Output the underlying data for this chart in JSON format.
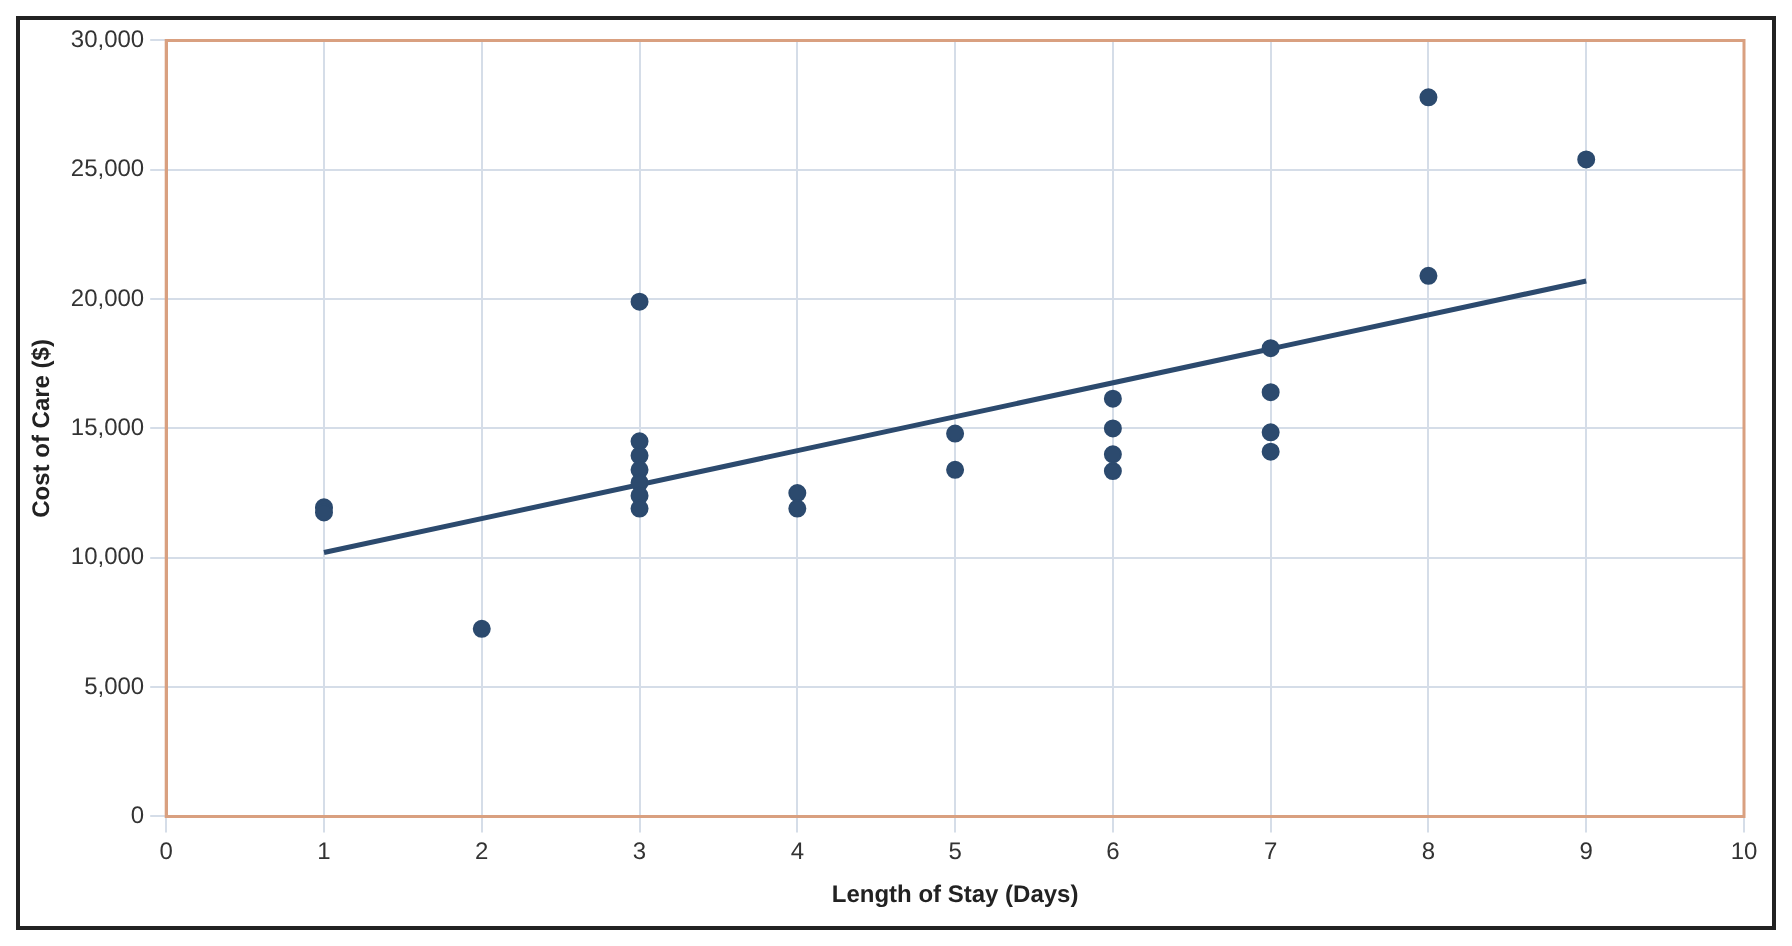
{
  "chart_data": {
    "type": "scatter",
    "xlabel": "Length of Stay (Days)",
    "ylabel": "Cost of Care ($)",
    "xlim": [
      0,
      10
    ],
    "xticks": [
      0,
      1,
      2,
      3,
      4,
      5,
      6,
      7,
      8,
      9,
      10
    ],
    "ylim": [
      0,
      30000
    ],
    "yticks": [
      {
        "value": 0,
        "label": "0"
      },
      {
        "value": 5000,
        "label": "5,000"
      },
      {
        "value": 10000,
        "label": "10,000"
      },
      {
        "value": 15000,
        "label": "15,000"
      },
      {
        "value": 20000,
        "label": "20,000"
      },
      {
        "value": 25000,
        "label": "25,000"
      },
      {
        "value": 30000,
        "label": "30,000"
      }
    ],
    "grid": true,
    "marker": "circle",
    "legend": false,
    "series": [
      {
        "type": "scatter",
        "color": "#2c4a6e",
        "x": [
          1,
          1,
          2,
          3,
          3,
          3,
          3,
          3,
          3,
          3,
          4,
          4,
          5,
          5,
          6,
          6,
          6,
          6,
          7,
          7,
          7,
          7,
          8,
          8,
          9
        ],
        "values": [
          11950,
          11750,
          7250,
          19900,
          14500,
          13950,
          13400,
          12900,
          12400,
          11900,
          12500,
          11900,
          14800,
          13400,
          16150,
          15000,
          14000,
          13350,
          18100,
          16400,
          14850,
          14100,
          27800,
          20900,
          25400
        ]
      },
      {
        "type": "line",
        "color": "#2c4a6e",
        "x": [
          1,
          9
        ],
        "values": [
          10200,
          20700
        ],
        "marker": "none"
      }
    ]
  }
}
